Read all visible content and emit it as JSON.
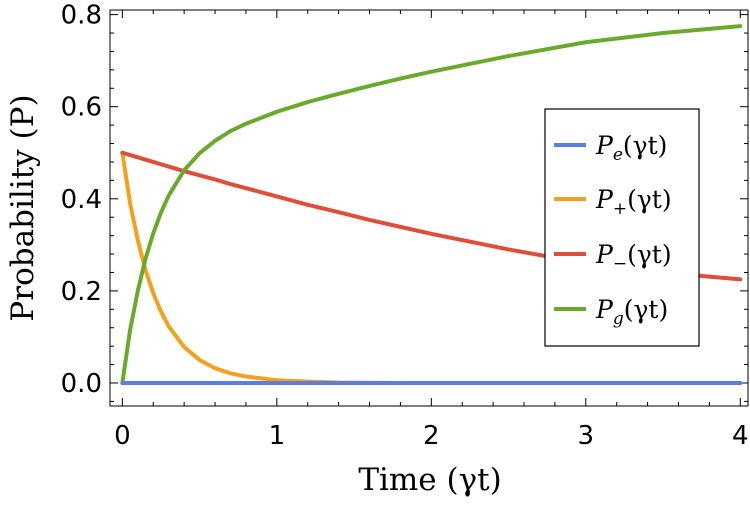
{
  "chart_data": {
    "type": "line",
    "xlabel": "Time (γt)",
    "ylabel": "Probability (P)",
    "xlim": [
      -0.08,
      4.05
    ],
    "ylim": [
      -0.05,
      0.81
    ],
    "xticks": [
      0,
      1,
      2,
      3,
      4
    ],
    "xtick_labels": [
      "0",
      "1",
      "2",
      "3",
      "4"
    ],
    "yticks": [
      0.0,
      0.2,
      0.4,
      0.6,
      0.8
    ],
    "ytick_labels": [
      "0.0",
      "0.2",
      "0.4",
      "0.6",
      "0.8"
    ],
    "grid": false,
    "legend_position": "right",
    "x": [
      0,
      0.05,
      0.1,
      0.15,
      0.2,
      0.25,
      0.3,
      0.4,
      0.5,
      0.6,
      0.7,
      0.8,
      1.0,
      1.2,
      1.4,
      1.6,
      1.8,
      2.0,
      2.5,
      3.0,
      3.5,
      4.0
    ],
    "series": [
      {
        "name": "P_e(γt)",
        "color": "#5B7FDE",
        "values": [
          0,
          0,
          0,
          0,
          0,
          0,
          0,
          0,
          0,
          0,
          0,
          0,
          0,
          0,
          0,
          0,
          0,
          0,
          0,
          0,
          0,
          0
        ]
      },
      {
        "name": "P_+(γt)",
        "color": "#F5A01A",
        "values": [
          0.5,
          0.39,
          0.31,
          0.245,
          0.195,
          0.155,
          0.123,
          0.078,
          0.05,
          0.032,
          0.021,
          0.014,
          0.006,
          0.003,
          0.001,
          0.0005,
          0,
          0,
          0,
          0,
          0,
          0
        ]
      },
      {
        "name": "P_−(γt)",
        "color": "#E04E3A",
        "values": [
          0.5,
          0.495,
          0.49,
          0.485,
          0.48,
          0.475,
          0.47,
          0.46,
          0.451,
          0.442,
          0.432,
          0.423,
          0.405,
          0.387,
          0.371,
          0.354,
          0.339,
          0.324,
          0.29,
          0.26,
          0.24,
          0.225
        ]
      },
      {
        "name": "P_g(γt)",
        "color": "#6AAA2A",
        "values": [
          0,
          0.115,
          0.2,
          0.27,
          0.325,
          0.37,
          0.407,
          0.462,
          0.499,
          0.526,
          0.547,
          0.563,
          0.589,
          0.61,
          0.628,
          0.645,
          0.661,
          0.676,
          0.71,
          0.74,
          0.76,
          0.775
        ]
      }
    ],
    "legend": [
      {
        "base": "P",
        "sub": "e",
        "args": "(γt)"
      },
      {
        "base": "P",
        "sub": "+",
        "args": "(γt)"
      },
      {
        "base": "P",
        "sub": "−",
        "args": "(γt)"
      },
      {
        "base": "P",
        "sub": "g",
        "args": "(γt)"
      }
    ]
  }
}
